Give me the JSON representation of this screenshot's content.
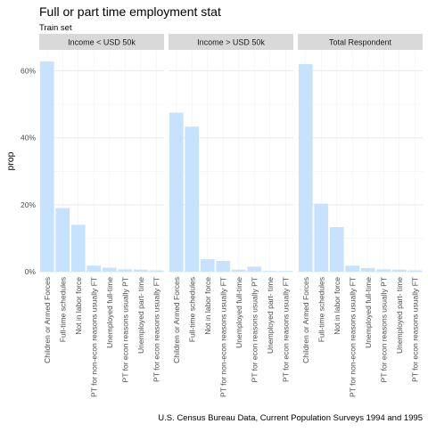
{
  "chart_data": {
    "type": "bar",
    "title": "Full or part time employment stat",
    "subtitle": "Train set",
    "ylabel": "prop",
    "xlabel": "",
    "caption": "U.S. Census Bureau Data, Current Population Surveys 1994 and 1995",
    "ylim": [
      0,
      0.66
    ],
    "yticks": [
      0,
      0.2,
      0.4,
      0.6
    ],
    "ytick_labels": [
      "0%",
      "20%",
      "40%",
      "60%"
    ],
    "grid": true,
    "bar_color": "#c6e2ff",
    "categories": [
      "Children or Armed Forces",
      "Full-time schedules",
      "Not in labor force",
      "PT for non-econ reasons usually FT",
      "Unemployed full-time",
      "PT for econ reasons usually PT",
      "Unemployed part- time",
      "PT for econ reasons usually FT"
    ],
    "panels": [
      {
        "name": "Income < USD 50k",
        "values": [
          0.628,
          0.19,
          0.14,
          0.018,
          0.012,
          0.007,
          0.006,
          0.004
        ]
      },
      {
        "name": "Income > USD 50k",
        "values": [
          0.475,
          0.433,
          0.037,
          0.032,
          0.006,
          0.015,
          0.002,
          0.002
        ]
      },
      {
        "name": "Total Respondent",
        "values": [
          0.62,
          0.203,
          0.133,
          0.018,
          0.011,
          0.007,
          0.006,
          0.004
        ]
      }
    ]
  }
}
